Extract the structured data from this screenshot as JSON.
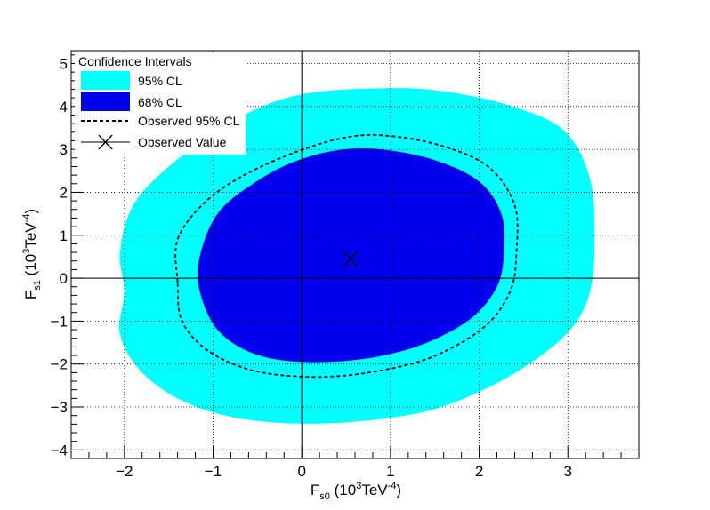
{
  "chart_data": {
    "type": "contour",
    "xlim": [
      -2.6,
      3.8
    ],
    "ylim": [
      -4.2,
      5.3
    ],
    "x_ticks": [
      -2,
      -1,
      0,
      1,
      2,
      3
    ],
    "x_tick_labels": [
      "−2",
      "−1",
      "0",
      "1",
      "2",
      "3"
    ],
    "y_ticks": [
      -4,
      -3,
      -2,
      -1,
      0,
      1,
      2,
      3,
      4,
      5
    ],
    "y_tick_labels": [
      "−4",
      "−3",
      "−2",
      "−1",
      "0",
      "1",
      "2",
      "3",
      "4",
      "5"
    ],
    "grid": true,
    "xlabel": {
      "main": "F",
      "sub": "s0",
      "unit_pre": " (10",
      "unit_sup1": "3",
      "unit_mid": "TeV",
      "unit_sup2": "-4",
      "unit_post": ")"
    },
    "ylabel": {
      "main": "F",
      "sub": "s1",
      "unit_pre": " (10",
      "unit_sup1": "3",
      "unit_mid": "TeV",
      "unit_sup2": "-4",
      "unit_post": ")"
    },
    "legend": {
      "title": "Confidence Intervals",
      "placement": "top-left",
      "entries": [
        {
          "label": "95% CL",
          "kind": "fill",
          "color": "#00ffff"
        },
        {
          "label": "68% CL",
          "kind": "fill",
          "color": "#0000ee"
        },
        {
          "label": "Observed 95% CL",
          "kind": "dashed-line",
          "color": "#000000"
        },
        {
          "label": "Observed Value",
          "kind": "marker",
          "color": "#000000"
        }
      ]
    },
    "contours": [
      {
        "name": "95% CL",
        "color": "#00ffff",
        "points": [
          [
            -2.0,
            -0.3
          ],
          [
            -2.05,
            0.6
          ],
          [
            -1.9,
            1.7
          ],
          [
            -1.5,
            2.6
          ],
          [
            -1.0,
            3.35
          ],
          [
            -0.5,
            3.95
          ],
          [
            0.05,
            4.3
          ],
          [
            0.8,
            4.42
          ],
          [
            1.5,
            4.38
          ],
          [
            2.3,
            4.05
          ],
          [
            2.95,
            3.45
          ],
          [
            3.25,
            2.3
          ],
          [
            3.3,
            0.8
          ],
          [
            3.25,
            -0.3
          ],
          [
            3.05,
            -1.15
          ],
          [
            2.6,
            -1.95
          ],
          [
            2.0,
            -2.65
          ],
          [
            1.3,
            -3.15
          ],
          [
            0.3,
            -3.38
          ],
          [
            -0.6,
            -3.3
          ],
          [
            -1.3,
            -2.9
          ],
          [
            -1.8,
            -2.2
          ],
          [
            -2.05,
            -1.3
          ]
        ]
      },
      {
        "name": "68% CL",
        "color": "#0000ee",
        "points": [
          [
            -1.15,
            -0.3
          ],
          [
            -1.15,
            0.5
          ],
          [
            -0.95,
            1.5
          ],
          [
            -0.55,
            2.2
          ],
          [
            -0.1,
            2.7
          ],
          [
            0.4,
            2.98
          ],
          [
            0.9,
            3.0
          ],
          [
            1.5,
            2.75
          ],
          [
            2.0,
            2.25
          ],
          [
            2.25,
            1.5
          ],
          [
            2.28,
            0.6
          ],
          [
            2.2,
            -0.2
          ],
          [
            1.9,
            -0.95
          ],
          [
            1.35,
            -1.55
          ],
          [
            0.7,
            -1.88
          ],
          [
            0.0,
            -1.95
          ],
          [
            -0.55,
            -1.75
          ],
          [
            -0.95,
            -1.2
          ]
        ]
      },
      {
        "name": "Observed 95% CL",
        "color": "#000000",
        "dashed": true,
        "points": [
          [
            -1.4,
            -0.1
          ],
          [
            -1.4,
            0.9
          ],
          [
            -1.1,
            1.75
          ],
          [
            -0.65,
            2.4
          ],
          [
            -0.05,
            2.95
          ],
          [
            0.5,
            3.28
          ],
          [
            0.95,
            3.32
          ],
          [
            1.55,
            3.1
          ],
          [
            2.1,
            2.6
          ],
          [
            2.4,
            1.7
          ],
          [
            2.42,
            0.6
          ],
          [
            2.35,
            -0.3
          ],
          [
            2.05,
            -1.15
          ],
          [
            1.45,
            -1.85
          ],
          [
            0.75,
            -2.2
          ],
          [
            0.1,
            -2.3
          ],
          [
            -0.55,
            -2.15
          ],
          [
            -1.05,
            -1.7
          ],
          [
            -1.35,
            -1.0
          ]
        ]
      }
    ],
    "observed_value": {
      "x": 0.55,
      "y": 0.45
    }
  }
}
